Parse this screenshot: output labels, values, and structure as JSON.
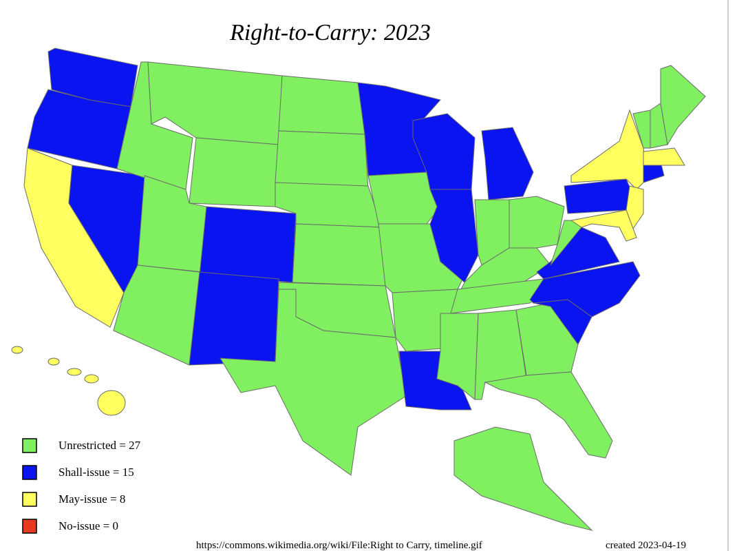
{
  "title": "Right-to-Carry: 2023",
  "legend": [
    {
      "label": "Unrestricted = 27",
      "color": "#80f060"
    },
    {
      "label": "Shall-issue = 15",
      "color": "#0a14f0"
    },
    {
      "label": "May-issue = 8",
      "color": "#ffff60"
    },
    {
      "label": "No-issue = 0",
      "color": "#e83a20"
    }
  ],
  "footer": {
    "source": "https://commons.wikimedia.org/wiki/File:Right to Carry, timeline.gif",
    "created": "created 2023-04-19"
  }
}
